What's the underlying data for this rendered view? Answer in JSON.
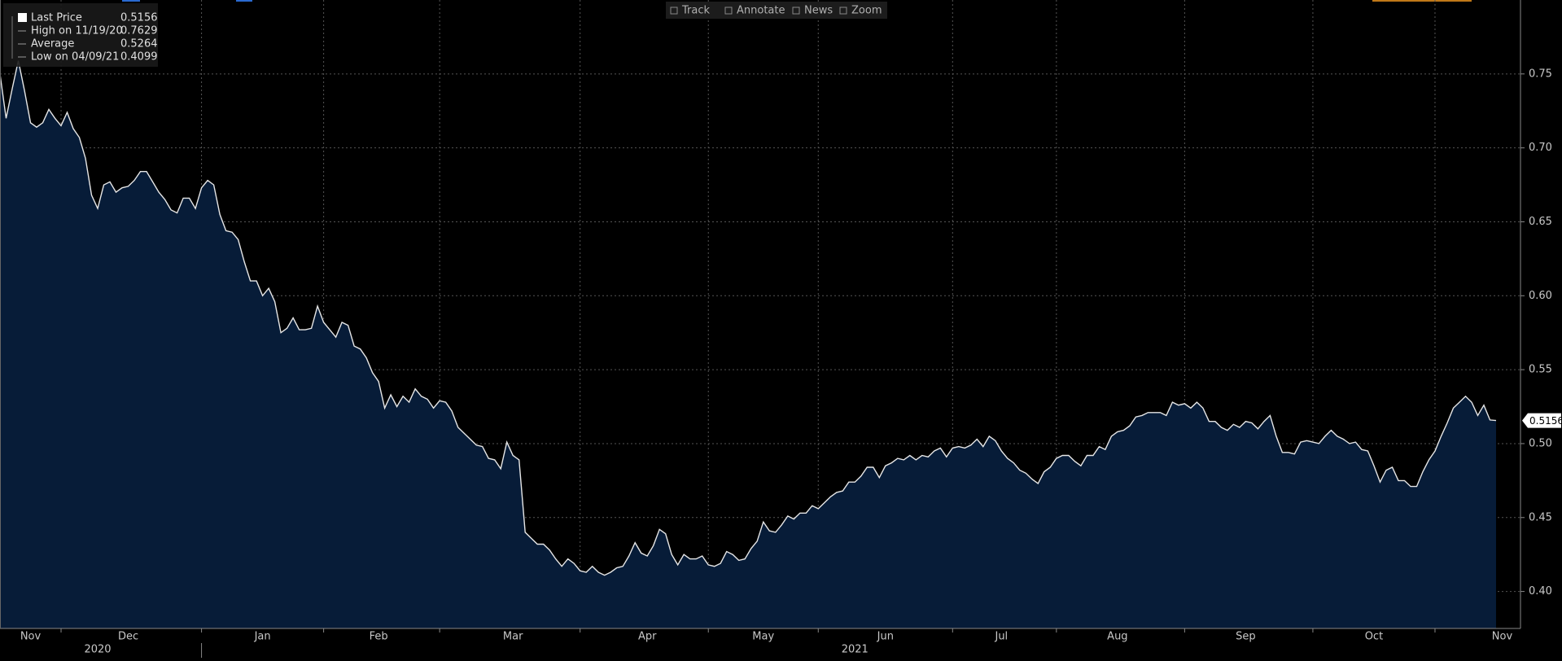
{
  "chart_data": {
    "type": "area",
    "toolbar": [
      "Track",
      "Annotate",
      "News",
      "Zoom"
    ],
    "legend": [
      {
        "name": "Last Price",
        "value": "0.5156"
      },
      {
        "name": "High on 11/19/20",
        "value": "0.7629"
      },
      {
        "name": "Average",
        "value": "0.5264"
      },
      {
        "name": "Low on 04/09/21",
        "value": "0.4099"
      }
    ],
    "line_color": "#e6e6e6",
    "fill_color": "#071c38",
    "values": [
      0.75,
      0.72,
      0.74,
      0.759,
      0.739,
      0.717,
      0.714,
      0.717,
      0.726,
      0.72,
      0.715,
      0.724,
      0.713,
      0.707,
      0.693,
      0.668,
      0.659,
      0.675,
      0.677,
      0.67,
      0.673,
      0.674,
      0.678,
      0.684,
      0.684,
      0.677,
      0.67,
      0.665,
      0.658,
      0.656,
      0.666,
      0.666,
      0.659,
      0.673,
      0.678,
      0.675,
      0.655,
      0.644,
      0.643,
      0.638,
      0.623,
      0.61,
      0.61,
      0.6,
      0.605,
      0.596,
      0.575,
      0.578,
      0.585,
      0.577,
      0.577,
      0.578,
      0.593,
      0.582,
      0.577,
      0.572,
      0.582,
      0.58,
      0.566,
      0.564,
      0.558,
      0.548,
      0.542,
      0.524,
      0.533,
      0.525,
      0.532,
      0.528,
      0.537,
      0.532,
      0.53,
      0.524,
      0.529,
      0.528,
      0.522,
      0.511,
      0.507,
      0.503,
      0.499,
      0.498,
      0.49,
      0.489,
      0.483,
      0.501,
      0.492,
      0.489,
      0.44,
      0.436,
      0.432,
      0.432,
      0.428,
      0.422,
      0.417,
      0.422,
      0.419,
      0.414,
      0.413,
      0.417,
      0.413,
      0.411,
      0.413,
      0.416,
      0.417,
      0.424,
      0.433,
      0.426,
      0.424,
      0.431,
      0.442,
      0.439,
      0.425,
      0.418,
      0.425,
      0.422,
      0.422,
      0.424,
      0.418,
      0.417,
      0.419,
      0.427,
      0.425,
      0.421,
      0.422,
      0.429,
      0.434,
      0.447,
      0.441,
      0.44,
      0.445,
      0.451,
      0.449,
      0.453,
      0.453,
      0.458,
      0.456,
      0.46,
      0.464,
      0.467,
      0.468,
      0.474,
      0.474,
      0.478,
      0.484,
      0.484,
      0.477,
      0.485,
      0.487,
      0.49,
      0.489,
      0.492,
      0.489,
      0.492,
      0.491,
      0.495,
      0.497,
      0.491,
      0.497,
      0.498,
      0.497,
      0.499,
      0.503,
      0.498,
      0.505,
      0.502,
      0.495,
      0.49,
      0.487,
      0.482,
      0.48,
      0.476,
      0.473,
      0.481,
      0.484,
      0.49,
      0.492,
      0.492,
      0.488,
      0.485,
      0.492,
      0.492,
      0.498,
      0.496,
      0.505,
      0.508,
      0.509,
      0.512,
      0.518,
      0.519,
      0.521,
      0.521,
      0.521,
      0.519,
      0.528,
      0.526,
      0.527,
      0.524,
      0.528,
      0.524,
      0.515,
      0.515,
      0.511,
      0.509,
      0.513,
      0.511,
      0.515,
      0.514,
      0.51,
      0.515,
      0.519,
      0.505,
      0.494,
      0.494,
      0.493,
      0.501,
      0.502,
      0.501,
      0.5,
      0.505,
      0.509,
      0.505,
      0.503,
      0.5,
      0.501,
      0.496,
      0.495,
      0.485,
      0.474,
      0.482,
      0.484,
      0.475,
      0.475,
      0.471,
      0.471,
      0.481,
      0.489,
      0.495,
      0.505,
      0.514,
      0.524,
      0.528,
      0.532,
      0.528,
      0.519,
      0.526,
      0.516,
      0.5156
    ],
    "xlim": [
      0,
      249
    ],
    "xticks": [
      10,
      33,
      53,
      72,
      95,
      116,
      134,
      156,
      173,
      194,
      215,
      235
    ],
    "month_labels": [
      {
        "value": 5,
        "label": "Nov"
      },
      {
        "value": 21,
        "label": "Dec"
      },
      {
        "value": 43,
        "label": "Jan"
      },
      {
        "value": 62,
        "label": "Feb"
      },
      {
        "value": 84,
        "label": "Mar"
      },
      {
        "value": 106,
        "label": "Apr"
      },
      {
        "value": 125,
        "label": "May"
      },
      {
        "value": 145,
        "label": "Jun"
      },
      {
        "value": 164,
        "label": "Jul"
      },
      {
        "value": 183,
        "label": "Aug"
      },
      {
        "value": 204,
        "label": "Sep"
      },
      {
        "value": 225,
        "label": "Oct"
      },
      {
        "value": 246,
        "label": "Nov"
      }
    ],
    "year_labels": [
      {
        "value": 16,
        "label": "2020"
      },
      {
        "value": 140,
        "label": "2021"
      }
    ],
    "year_divider": 33,
    "ylim": [
      0.375,
      0.8
    ],
    "yticks": [
      {
        "value": 0.4,
        "label": "0.40"
      },
      {
        "value": 0.45,
        "label": "0.45"
      },
      {
        "value": 0.5,
        "label": "0.50"
      },
      {
        "value": 0.55,
        "label": "0.55"
      },
      {
        "value": 0.6,
        "label": "0.60"
      },
      {
        "value": 0.65,
        "label": "0.65"
      },
      {
        "value": 0.7,
        "label": "0.70"
      },
      {
        "value": 0.75,
        "label": "0.75"
      }
    ],
    "grid": true
  }
}
